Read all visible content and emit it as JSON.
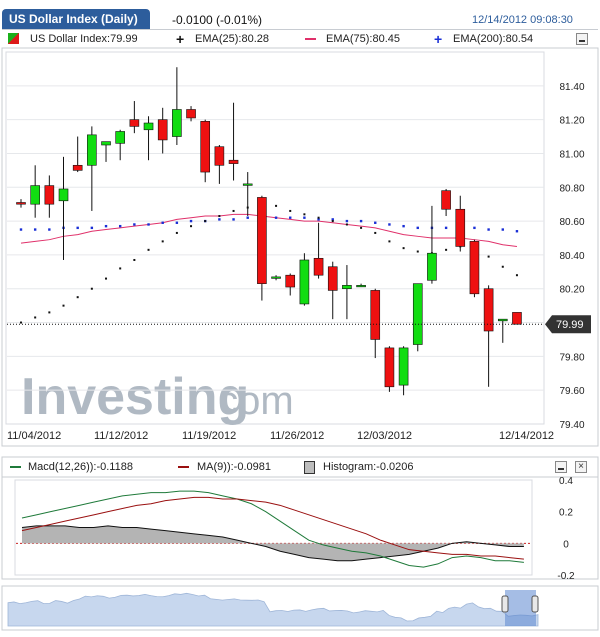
{
  "header": {
    "title": "US Dollar Index (Daily)",
    "change": "-0.0100 (-0.01%)",
    "datetime": "12/14/2012 09:08:30"
  },
  "legend": {
    "symbol": "US Dollar Index:79.99",
    "ema25": "EMA(25):80.28",
    "ema75": "EMA(75):80.45",
    "ema200": "EMA(200):80.54",
    "ema25_color": "#111111",
    "ema75_color": "#e0306a",
    "ema200_color": "#1a2fd6"
  },
  "macd_legend": {
    "macd": "Macd(12,26)):-0.1188",
    "ma": "MA(9)):-0.0981",
    "histogram": "Histogram:-0.0206",
    "macd_color": "#1f7a3a",
    "ma_color": "#9a1010"
  },
  "watermark": {
    "brand": "Investing",
    "tld": ".com"
  },
  "last_price_label": "79.99",
  "chart_data": [
    {
      "type": "candlestick",
      "title": "US Dollar Index (Daily)",
      "ylim": [
        79.4,
        81.6
      ],
      "y_ticks": [
        "81.40",
        "81.20",
        "81.00",
        "80.80",
        "80.60",
        "80.40",
        "80.20",
        "80.00",
        "79.80",
        "79.60",
        "79.40"
      ],
      "x_ticks": [
        "11/04/2012",
        "11/12/2012",
        "11/19/2012",
        "11/26/2012",
        "12/03/2012",
        "12/14/2012"
      ],
      "last_price": 79.99,
      "up_color": "#11dd11",
      "down_color": "#ee1111",
      "candles": [
        {
          "o": 80.71,
          "h": 80.73,
          "l": 80.68,
          "c": 80.7
        },
        {
          "o": 80.7,
          "h": 80.93,
          "l": 80.62,
          "c": 80.81
        },
        {
          "o": 80.81,
          "h": 80.87,
          "l": 80.62,
          "c": 80.7
        },
        {
          "o": 80.72,
          "h": 80.98,
          "l": 80.37,
          "c": 80.79
        },
        {
          "o": 80.93,
          "h": 81.1,
          "l": 80.89,
          "c": 80.9
        },
        {
          "o": 80.93,
          "h": 81.16,
          "l": 80.66,
          "c": 81.11
        },
        {
          "o": 81.05,
          "h": 81.07,
          "l": 80.95,
          "c": 81.07
        },
        {
          "o": 81.06,
          "h": 81.14,
          "l": 80.96,
          "c": 81.13
        },
        {
          "o": 81.2,
          "h": 81.31,
          "l": 81.12,
          "c": 81.16
        },
        {
          "o": 81.14,
          "h": 81.22,
          "l": 80.96,
          "c": 81.18
        },
        {
          "o": 81.2,
          "h": 81.27,
          "l": 81.0,
          "c": 81.08
        },
        {
          "o": 81.1,
          "h": 81.51,
          "l": 81.05,
          "c": 81.26
        },
        {
          "o": 81.26,
          "h": 81.28,
          "l": 81.19,
          "c": 81.21
        },
        {
          "o": 81.19,
          "h": 81.2,
          "l": 80.83,
          "c": 80.89
        },
        {
          "o": 81.04,
          "h": 81.05,
          "l": 80.82,
          "c": 80.93
        },
        {
          "o": 80.96,
          "h": 81.3,
          "l": 80.84,
          "c": 80.94
        },
        {
          "o": 80.82,
          "h": 80.89,
          "l": 80.63,
          "c": 80.82
        },
        {
          "o": 80.74,
          "h": 80.75,
          "l": 80.13,
          "c": 80.23
        },
        {
          "o": 80.27,
          "h": 80.28,
          "l": 80.25,
          "c": 80.27
        },
        {
          "o": 80.28,
          "h": 80.29,
          "l": 80.16,
          "c": 80.21
        },
        {
          "o": 80.11,
          "h": 80.41,
          "l": 80.1,
          "c": 80.37
        },
        {
          "o": 80.38,
          "h": 80.59,
          "l": 80.26,
          "c": 80.28
        },
        {
          "o": 80.33,
          "h": 80.36,
          "l": 80.02,
          "c": 80.19
        },
        {
          "o": 80.2,
          "h": 80.34,
          "l": 80.02,
          "c": 80.22
        },
        {
          "o": 80.22,
          "h": 80.23,
          "l": 80.21,
          "c": 80.22
        },
        {
          "o": 80.19,
          "h": 80.2,
          "l": 79.79,
          "c": 79.9
        },
        {
          "o": 79.85,
          "h": 79.86,
          "l": 79.59,
          "c": 79.62
        },
        {
          "o": 79.63,
          "h": 79.86,
          "l": 79.57,
          "c": 79.85
        },
        {
          "o": 79.87,
          "h": 80.23,
          "l": 79.83,
          "c": 80.23
        },
        {
          "o": 80.25,
          "h": 80.69,
          "l": 80.23,
          "c": 80.41
        },
        {
          "o": 80.78,
          "h": 80.79,
          "l": 80.63,
          "c": 80.67
        },
        {
          "o": 80.67,
          "h": 80.75,
          "l": 80.42,
          "c": 80.45
        },
        {
          "o": 80.48,
          "h": 80.49,
          "l": 80.15,
          "c": 80.17
        },
        {
          "o": 80.2,
          "h": 80.22,
          "l": 79.62,
          "c": 79.95
        },
        {
          "o": 80.01,
          "h": 80.01,
          "l": 79.88,
          "c": 80.02
        },
        {
          "o": 80.06,
          "h": 80.06,
          "l": 79.99,
          "c": 79.99
        }
      ],
      "ema25": [
        80.0,
        80.03,
        80.06,
        80.1,
        80.15,
        80.2,
        80.26,
        80.32,
        80.37,
        80.43,
        80.48,
        80.53,
        80.57,
        80.6,
        80.63,
        80.66,
        80.68,
        80.73,
        80.69,
        80.66,
        80.64,
        80.62,
        80.6,
        80.58,
        80.56,
        80.53,
        80.48,
        80.44,
        80.42,
        80.41,
        80.43,
        80.45,
        80.44,
        80.39,
        80.33,
        80.28
      ],
      "ema75": [
        80.47,
        80.48,
        80.49,
        80.51,
        80.52,
        80.54,
        80.55,
        80.56,
        80.57,
        80.58,
        80.59,
        80.61,
        80.62,
        80.63,
        80.63,
        80.64,
        80.64,
        80.63,
        80.62,
        80.61,
        80.6,
        80.6,
        80.59,
        80.58,
        80.57,
        80.56,
        80.54,
        80.52,
        80.51,
        80.5,
        80.5,
        80.5,
        80.49,
        80.48,
        80.46,
        80.45
      ],
      "ema200": [
        80.55,
        80.55,
        80.55,
        80.56,
        80.56,
        80.56,
        80.57,
        80.57,
        80.58,
        80.58,
        80.59,
        80.59,
        80.6,
        80.6,
        80.61,
        80.61,
        80.62,
        80.62,
        80.62,
        80.62,
        80.62,
        80.61,
        80.61,
        80.6,
        80.6,
        80.59,
        80.58,
        80.57,
        80.56,
        80.56,
        80.56,
        80.56,
        80.56,
        80.55,
        80.55,
        80.54
      ]
    },
    {
      "type": "line",
      "title": "MACD",
      "ylim": [
        -0.2,
        0.4
      ],
      "y_ticks": [
        "0.4",
        "0.2",
        "0",
        "-0.2"
      ],
      "series": [
        {
          "name": "Macd(12,26))",
          "values": [
            0.16,
            0.18,
            0.2,
            0.22,
            0.24,
            0.26,
            0.28,
            0.3,
            0.31,
            0.32,
            0.32,
            0.33,
            0.33,
            0.32,
            0.3,
            0.28,
            0.25,
            0.2,
            0.14,
            0.08,
            0.02,
            -0.01,
            -0.03,
            -0.05,
            -0.06,
            -0.08,
            -0.11,
            -0.14,
            -0.15,
            -0.13,
            -0.09,
            -0.08,
            -0.09,
            -0.11,
            -0.11,
            -0.12
          ]
        },
        {
          "name": "MA(9))",
          "values": [
            0.08,
            0.1,
            0.12,
            0.14,
            0.16,
            0.18,
            0.2,
            0.22,
            0.24,
            0.25,
            0.27,
            0.28,
            0.29,
            0.29,
            0.28,
            0.28,
            0.27,
            0.26,
            0.24,
            0.21,
            0.18,
            0.15,
            0.12,
            0.09,
            0.06,
            0.02,
            -0.01,
            -0.04,
            -0.05,
            -0.06,
            -0.07,
            -0.07,
            -0.08,
            -0.08,
            -0.09,
            -0.1
          ]
        },
        {
          "name": "Histogram",
          "values": [
            0.1,
            0.11,
            0.11,
            0.11,
            0.1,
            0.1,
            0.11,
            0.1,
            0.1,
            0.09,
            0.08,
            0.07,
            0.06,
            0.05,
            0.04,
            0.02,
            0.0,
            -0.02,
            -0.05,
            -0.07,
            -0.09,
            -0.1,
            -0.11,
            -0.11,
            -0.1,
            -0.09,
            -0.08,
            -0.07,
            -0.05,
            -0.03,
            0.0,
            0.01,
            0.0,
            -0.01,
            -0.02,
            -0.02
          ]
        }
      ]
    }
  ]
}
